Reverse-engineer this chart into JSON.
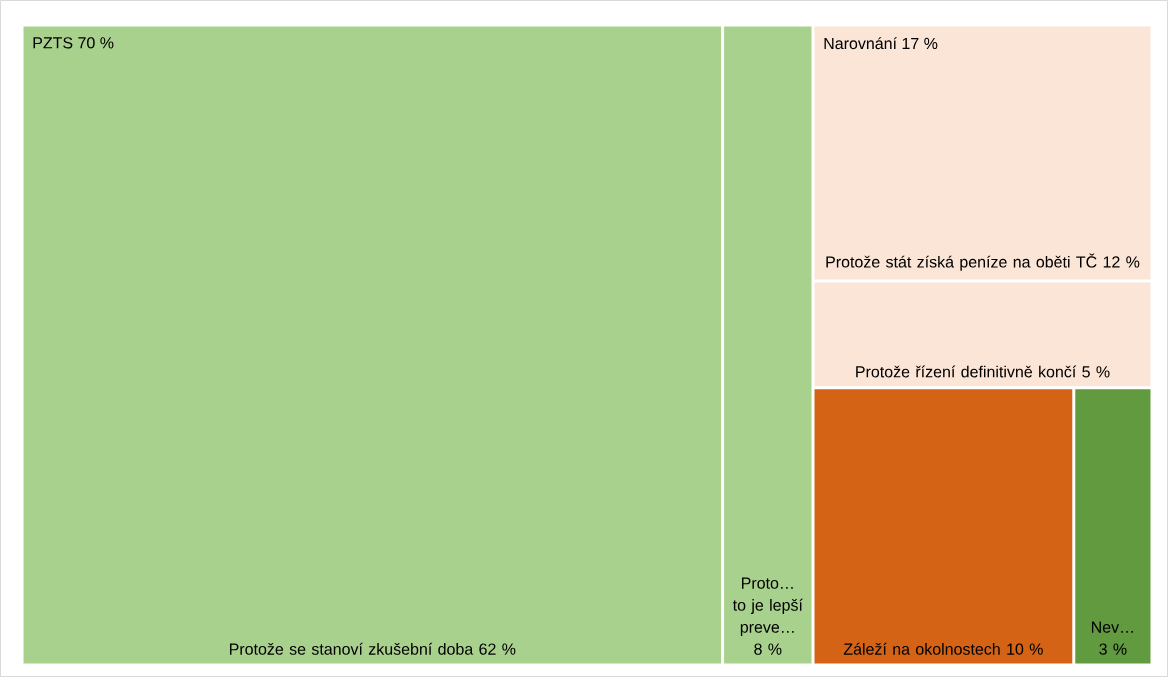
{
  "chart_data": {
    "type": "other",
    "categories": [
      "Protože se stanoví zkušební doba",
      "Proto… to je lepší preve…",
      "Protože stát získá peníze na oběti TČ",
      "Protože řízení definitivně končí",
      "Záleží na okolnostech",
      "Nev…"
    ],
    "values": [
      62,
      8,
      12,
      5,
      10,
      3
    ],
    "value_labels": [
      "62 %",
      "8 %",
      "12 %",
      "5 %",
      "10 %",
      "3 %"
    ],
    "colors": [
      "#a9d18e",
      "#a9d18e",
      "#fbe5d6",
      "#fbe5d6",
      "#d46316",
      "#629a3f"
    ],
    "annotations": [
      "PZTS 70 %",
      "Narovnání 17 %"
    ]
  }
}
